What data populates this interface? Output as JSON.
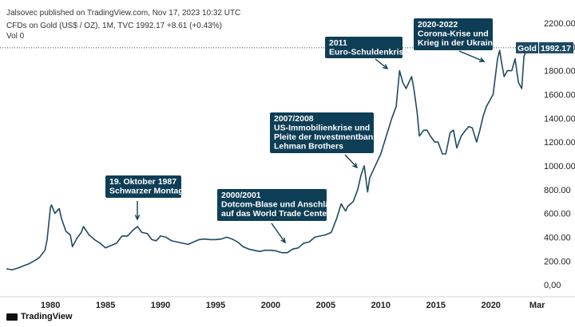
{
  "header": {
    "published": "Jalsovec published on TradingView.com, Nov 17, 2023 10:32 UTC",
    "symbol_line": "CFDs on Gold (US$ / OZ), 1M, TVC 1992.17 +8.61 (+0.43%)",
    "volume": "Vol 0"
  },
  "footer": {
    "brand": "TradingView"
  },
  "colors": {
    "line": "#1e4a63",
    "annotation_bg": "#0e3e55",
    "last_price_bg": "#1e4a63",
    "price_line": "#1e4a63"
  },
  "chart_data": {
    "type": "line",
    "series": [
      {
        "name": "Gold",
        "x": [
          1976.0,
          1976.5,
          1977.0,
          1977.3,
          1977.7,
          1978.0,
          1978.5,
          1979.0,
          1979.5,
          1979.7,
          1980.0,
          1980.1,
          1980.4,
          1980.8,
          1981.0,
          1981.4,
          1981.8,
          1982.0,
          1982.4,
          1982.8,
          1983.0,
          1983.5,
          1984.0,
          1984.5,
          1985.0,
          1985.5,
          1986.0,
          1986.5,
          1987.0,
          1987.5,
          1987.9,
          1988.3,
          1988.8,
          1989.2,
          1989.6,
          1990.0,
          1990.5,
          1991.0,
          1991.5,
          1992.0,
          1992.5,
          1993.0,
          1993.5,
          1994.0,
          1994.5,
          1995.0,
          1995.5,
          1996.0,
          1996.5,
          1997.0,
          1997.5,
          1998.0,
          1998.5,
          1999.0,
          1999.5,
          2000.0,
          2000.5,
          2001.0,
          2001.5,
          2002.0,
          2002.5,
          2003.0,
          2003.5,
          2004.0,
          2004.5,
          2005.0,
          2005.5,
          2006.0,
          2006.4,
          2006.8,
          2007.0,
          2007.5,
          2007.9,
          2008.2,
          2008.5,
          2008.8,
          2009.0,
          2009.5,
          2010.0,
          2010.5,
          2011.0,
          2011.4,
          2011.7,
          2012.0,
          2012.3,
          2012.8,
          2013.0,
          2013.3,
          2013.5,
          2013.9,
          2014.2,
          2014.5,
          2014.9,
          2015.2,
          2015.6,
          2015.9,
          2016.3,
          2016.6,
          2016.9,
          2017.3,
          2017.7,
          2018.0,
          2018.3,
          2018.7,
          2019.0,
          2019.3,
          2019.6,
          2019.9,
          2020.2,
          2020.6,
          2020.8,
          2021.0,
          2021.2,
          2021.5,
          2021.9,
          2022.2,
          2022.5,
          2022.8,
          2023.0,
          2023.3,
          2023.6,
          2023.9
        ],
        "values": [
          135,
          125,
          140,
          150,
          165,
          175,
          200,
          230,
          290,
          380,
          650,
          670,
          600,
          640,
          560,
          450,
          420,
          320,
          390,
          440,
          490,
          420,
          380,
          350,
          310,
          330,
          350,
          410,
          410,
          460,
          490,
          440,
          430,
          380,
          370,
          410,
          400,
          370,
          360,
          350,
          340,
          360,
          380,
          385,
          380,
          380,
          385,
          400,
          385,
          360,
          320,
          300,
          290,
          280,
          290,
          290,
          285,
          270,
          270,
          300,
          310,
          350,
          360,
          400,
          410,
          420,
          440,
          560,
          680,
          620,
          660,
          700,
          800,
          920,
          1000,
          780,
          900,
          1000,
          1100,
          1250,
          1400,
          1500,
          1800,
          1700,
          1650,
          1750,
          1650,
          1450,
          1250,
          1300,
          1300,
          1250,
          1200,
          1200,
          1100,
          1100,
          1280,
          1300,
          1150,
          1250,
          1300,
          1330,
          1320,
          1200,
          1300,
          1420,
          1500,
          1550,
          1600,
          1900,
          1970,
          1850,
          1750,
          1800,
          1800,
          1900,
          1700,
          1650,
          1920,
          1990,
          1950,
          1992
        ]
      }
    ],
    "y_ticks": [
      "2200.00",
      "2000.00",
      "1800.00",
      "1600.00",
      "1400.00",
      "1200.00",
      "1000.00",
      "800.00",
      "600.00",
      "400.00",
      "200.00",
      "0,00"
    ],
    "x_ticks": [
      "1980",
      "1985",
      "1990",
      "1995",
      "2000",
      "2005",
      "2010",
      "2015",
      "2020",
      "Mar"
    ],
    "ylim": [
      -100,
      2300
    ],
    "xlim": [
      1976.0,
      2024.3
    ],
    "last_price": {
      "label": "Gold",
      "value": "1992.17"
    },
    "annotations": [
      {
        "lines": [
          "19. Oktober 1987",
          "Schwarzer Montag"
        ]
      },
      {
        "lines": [
          "2000/2001",
          "Dotcom-Blase und Anschläge",
          "auf das World Trade Center"
        ]
      },
      {
        "lines": [
          "2007/2008",
          "US-Immobilienkrise und",
          "Pleite der Investmentbank",
          "Lehman Brothers"
        ]
      },
      {
        "lines": [
          "2011",
          "Euro-Schuldenkrise"
        ]
      },
      {
        "lines": [
          "2020-2022",
          "Corona-Krise und",
          "Krieg in der Ukraine"
        ]
      }
    ],
    "grid": false
  }
}
